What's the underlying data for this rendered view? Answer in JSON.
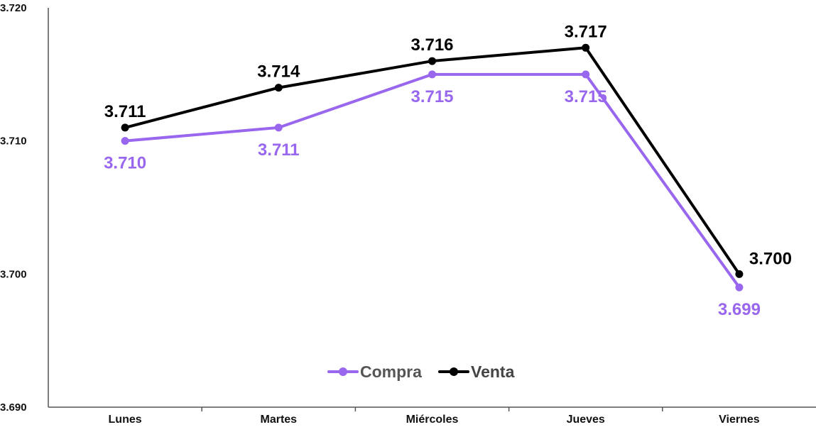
{
  "chart_data": {
    "type": "line",
    "title": "",
    "xlabel": "",
    "ylabel": "",
    "categories": [
      "Lunes",
      "Martes",
      "Miércoles",
      "Jueves",
      "Viernes"
    ],
    "ylim": [
      3690,
      3720
    ],
    "y_ticks": [
      3690,
      3700,
      3710,
      3720
    ],
    "y_tick_labels": [
      "3.690",
      "3.700",
      "3.710",
      "3.720"
    ],
    "grid": false,
    "legend_position": "bottom-center",
    "series": [
      {
        "name": "Compra",
        "color": "#9966ee",
        "values": [
          3710,
          3711,
          3715,
          3715,
          3699
        ],
        "labels": [
          "3.710",
          "3.711",
          "3.715",
          "3.715",
          "3.699"
        ],
        "label_placement": "below"
      },
      {
        "name": "Venta",
        "color": "#000000",
        "values": [
          3711,
          3714,
          3716,
          3717,
          3700
        ],
        "labels": [
          "3.711",
          "3.714",
          "3.716",
          "3.717",
          "3.700"
        ],
        "label_placement": "above"
      }
    ]
  }
}
